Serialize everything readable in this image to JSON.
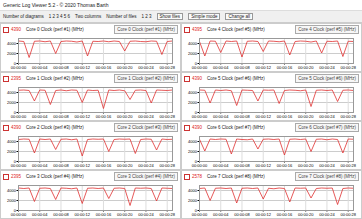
{
  "window": {
    "title": "Generic Log Viewer 5.2 - © 2020 Thomas Barth",
    "toolbar": [
      "Number of diagrams",
      "1 2 3 4 5 6",
      "Two columns",
      "Number of files",
      "1 2 3",
      "Show files",
      "Simple mode",
      "Change all"
    ]
  },
  "chart_data": [
    {
      "type": "line",
      "title": "Core 0 Clock (perf #1) (MHz)",
      "current": "4390",
      "color": "#e03030",
      "grid": true,
      "x": [
        0,
        1,
        2,
        3,
        4,
        5,
        6,
        7,
        8,
        9,
        10,
        11,
        12,
        13,
        14,
        15,
        16,
        17,
        18,
        19,
        20,
        21,
        22,
        23,
        24,
        25,
        26,
        27,
        28,
        29
      ],
      "values": [
        4500,
        4400,
        1200,
        4450,
        4500,
        4350,
        4500,
        2000,
        4400,
        4500,
        4450,
        4300,
        4500,
        1500,
        4450,
        4400,
        4500,
        4350,
        4500,
        4400,
        2500,
        4450,
        4500,
        4400,
        4350,
        4500,
        4450,
        1800,
        4400,
        4500
      ],
      "xlim": [
        0,
        29
      ],
      "ylim": [
        0,
        5000
      ],
      "yticks": [
        0,
        2000,
        4000
      ],
      "xticks": [
        {
          "value": 0,
          "label": "00:00:00"
        },
        {
          "value": 4,
          "label": "00:00:04"
        },
        {
          "value": 8,
          "label": "00:00:08"
        },
        {
          "value": 12,
          "label": "00:00:12"
        },
        {
          "value": 16,
          "label": "00:00:16"
        },
        {
          "value": 20,
          "label": "00:00:20"
        },
        {
          "value": 24,
          "label": "00:00:24"
        },
        {
          "value": 28,
          "label": "00:00:28"
        }
      ]
    },
    {
      "type": "line",
      "title": "Core 4 Clock (perf #5) (MHz)",
      "current": "4395",
      "color": "#e03030",
      "grid": true,
      "x": [
        0,
        1,
        2,
        3,
        4,
        5,
        6,
        7,
        8,
        9,
        10,
        11,
        12,
        13,
        14,
        15,
        16,
        17,
        18,
        19,
        20,
        21,
        22,
        23,
        24,
        25,
        26,
        27,
        28,
        29
      ],
      "values": [
        4400,
        1500,
        4500,
        4450,
        2200,
        4500,
        4400,
        4500,
        1300,
        4450,
        4500,
        4400,
        2400,
        4500,
        4450,
        4350,
        4500,
        1700,
        4400,
        4500,
        4450,
        4300,
        4500,
        2100,
        4450,
        4400,
        4500,
        1400,
        4450,
        4400
      ],
      "xlim": [
        0,
        29
      ],
      "ylim": [
        0,
        5000
      ],
      "yticks": [
        0,
        2000,
        4000
      ],
      "xticks": [
        {
          "value": 0,
          "label": "00:00:00"
        },
        {
          "value": 4,
          "label": "00:00:04"
        },
        {
          "value": 8,
          "label": "00:00:08"
        },
        {
          "value": 12,
          "label": "00:00:12"
        },
        {
          "value": 16,
          "label": "00:00:16"
        },
        {
          "value": 20,
          "label": "00:00:20"
        },
        {
          "value": 24,
          "label": "00:00:24"
        },
        {
          "value": 28,
          "label": "00:00:28"
        }
      ]
    },
    {
      "type": "line",
      "title": "Core 1 Clock (perf #2) (MHz)",
      "current": "2395",
      "color": "#e03030",
      "grid": true,
      "x": [
        0,
        1,
        2,
        3,
        4,
        5,
        6,
        7,
        8,
        9,
        10,
        11,
        12,
        13,
        14,
        15,
        16,
        17,
        18,
        19,
        20,
        21,
        22,
        23,
        24,
        25,
        26,
        27,
        28,
        29
      ],
      "values": [
        4450,
        4500,
        4400,
        2300,
        4500,
        4450,
        1600,
        4400,
        4500,
        4350,
        4500,
        4450,
        2000,
        4500,
        4400,
        4450,
        800,
        4500,
        4400,
        4500,
        4350,
        2600,
        4450,
        4500,
        4400,
        1900,
        4500,
        4450,
        4400,
        4500
      ],
      "xlim": [
        0,
        29
      ],
      "ylim": [
        0,
        5000
      ],
      "yticks": [
        0,
        2000,
        4000
      ],
      "xticks": [
        {
          "value": 0,
          "label": "00:00:00"
        },
        {
          "value": 4,
          "label": "00:00:04"
        },
        {
          "value": 8,
          "label": "00:00:08"
        },
        {
          "value": 12,
          "label": "00:00:12"
        },
        {
          "value": 16,
          "label": "00:00:16"
        },
        {
          "value": 20,
          "label": "00:00:20"
        },
        {
          "value": 24,
          "label": "00:00:24"
        },
        {
          "value": 28,
          "label": "00:00:28"
        }
      ]
    },
    {
      "type": "line",
      "title": "Core 5 Clock (perf #6) (MHz)",
      "current": "4390",
      "color": "#e03030",
      "grid": true,
      "x": [
        0,
        1,
        2,
        3,
        4,
        5,
        6,
        7,
        8,
        9,
        10,
        11,
        12,
        13,
        14,
        15,
        16,
        17,
        18,
        19,
        20,
        21,
        22,
        23,
        24,
        25,
        26,
        27,
        28,
        29
      ],
      "values": [
        4500,
        4450,
        1900,
        4500,
        4400,
        4500,
        4350,
        1400,
        4500,
        4450,
        4400,
        2300,
        4500,
        4450,
        4500,
        1800,
        4400,
        4500,
        4450,
        4350,
        4500,
        1200,
        4450,
        4500,
        4400,
        4500,
        2200,
        4450,
        4500,
        4400
      ],
      "xlim": [
        0,
        29
      ],
      "ylim": [
        0,
        5000
      ],
      "yticks": [
        0,
        2000,
        4000
      ],
      "xticks": [
        {
          "value": 0,
          "label": "00:00:00"
        },
        {
          "value": 4,
          "label": "00:00:04"
        },
        {
          "value": 8,
          "label": "00:00:08"
        },
        {
          "value": 12,
          "label": "00:00:12"
        },
        {
          "value": 16,
          "label": "00:00:16"
        },
        {
          "value": 20,
          "label": "00:00:20"
        },
        {
          "value": 24,
          "label": "00:00:24"
        },
        {
          "value": 28,
          "label": "00:00:28"
        }
      ]
    },
    {
      "type": "line",
      "title": "Core 2 Clock (perf #3) (MHz)",
      "current": "4390",
      "color": "#e03030",
      "grid": true,
      "x": [
        0,
        1,
        2,
        3,
        4,
        5,
        6,
        7,
        8,
        9,
        10,
        11,
        12,
        13,
        14,
        15,
        16,
        17,
        18,
        19,
        20,
        21,
        22,
        23,
        24,
        25,
        26,
        27,
        28,
        29
      ],
      "values": [
        4400,
        4500,
        4450,
        1700,
        4500,
        4400,
        4500,
        2400,
        4450,
        4500,
        4350,
        4500,
        1100,
        4400,
        4500,
        4450,
        4500,
        2000,
        4400,
        4500,
        4450,
        4500,
        1600,
        4400,
        4500,
        4450,
        2300,
        4500,
        4400,
        4450
      ],
      "xlim": [
        0,
        29
      ],
      "ylim": [
        0,
        5000
      ],
      "yticks": [
        0,
        2000,
        4000
      ],
      "xticks": [
        {
          "value": 0,
          "label": "00:00:00"
        },
        {
          "value": 4,
          "label": "00:00:04"
        },
        {
          "value": 8,
          "label": "00:00:08"
        },
        {
          "value": 12,
          "label": "00:00:12"
        },
        {
          "value": 16,
          "label": "00:00:16"
        },
        {
          "value": 20,
          "label": "00:00:20"
        },
        {
          "value": 24,
          "label": "00:00:24"
        },
        {
          "value": 28,
          "label": "00:00:28"
        }
      ]
    },
    {
      "type": "line",
      "title": "Core 6 Clock (perf #7) (MHz)",
      "current": "4390",
      "color": "#e03030",
      "grid": true,
      "x": [
        0,
        1,
        2,
        3,
        4,
        5,
        6,
        7,
        8,
        9,
        10,
        11,
        12,
        13,
        14,
        15,
        16,
        17,
        18,
        19,
        20,
        21,
        22,
        23,
        24,
        25,
        26,
        27,
        28,
        29
      ],
      "values": [
        4450,
        2100,
        4500,
        4400,
        4500,
        4450,
        1500,
        4500,
        4400,
        4350,
        4500,
        2500,
        4450,
        4500,
        4400,
        4500,
        1300,
        4450,
        4500,
        4400,
        4500,
        2000,
        4450,
        4500,
        4350,
        4500,
        4400,
        1700,
        4500,
        4450
      ],
      "xlim": [
        0,
        29
      ],
      "ylim": [
        0,
        5000
      ],
      "yticks": [
        0,
        2000,
        4000
      ],
      "xticks": [
        {
          "value": 0,
          "label": "00:00:00"
        },
        {
          "value": 4,
          "label": "00:00:04"
        },
        {
          "value": 8,
          "label": "00:00:08"
        },
        {
          "value": 12,
          "label": "00:00:12"
        },
        {
          "value": 16,
          "label": "00:00:16"
        },
        {
          "value": 20,
          "label": "00:00:20"
        },
        {
          "value": 24,
          "label": "00:00:24"
        },
        {
          "value": 28,
          "label": "00:00:28"
        }
      ]
    },
    {
      "type": "line",
      "title": "Core 3 Clock (perf #4) (MHz)",
      "current": "2395",
      "color": "#e03030",
      "grid": true,
      "x": [
        0,
        1,
        2,
        3,
        4,
        5,
        6,
        7,
        8,
        9,
        10,
        11,
        12,
        13,
        14,
        15,
        16,
        17,
        18,
        19,
        20,
        21,
        22,
        23,
        24,
        25,
        26,
        27,
        28,
        29
      ],
      "values": [
        4500,
        4400,
        4500,
        1800,
        4450,
        4500,
        4400,
        2200,
        4500,
        4450,
        4350,
        4500,
        1400,
        4450,
        4500,
        4400,
        4500,
        2400,
        4450,
        4500,
        4400,
        1000,
        4500,
        4450,
        4500,
        4400,
        1900,
        4500,
        4450,
        4400
      ],
      "xlim": [
        0,
        29
      ],
      "ylim": [
        0,
        5000
      ],
      "yticks": [
        0,
        2000,
        4000
      ],
      "xticks": [
        {
          "value": 0,
          "label": "00:00:00"
        },
        {
          "value": 4,
          "label": "00:00:04"
        },
        {
          "value": 8,
          "label": "00:00:08"
        },
        {
          "value": 12,
          "label": "00:00:12"
        },
        {
          "value": 16,
          "label": "00:00:16"
        },
        {
          "value": 20,
          "label": "00:00:20"
        },
        {
          "value": 24,
          "label": "00:00:24"
        },
        {
          "value": 28,
          "label": "00:00:28"
        }
      ]
    },
    {
      "type": "line",
      "title": "Core 7 Clock (perf #8) (MHz)",
      "current": "2578",
      "color": "#e03030",
      "grid": true,
      "x": [
        0,
        1,
        2,
        3,
        4,
        5,
        6,
        7,
        8,
        9,
        10,
        11,
        12,
        13,
        14,
        15,
        16,
        17,
        18,
        19,
        20,
        21,
        22,
        23,
        24,
        25,
        26,
        27,
        28,
        29
      ],
      "values": [
        4400,
        4500,
        2000,
        4450,
        4500,
        4400,
        4500,
        1500,
        4450,
        4500,
        4400,
        4500,
        2300,
        4450,
        4350,
        4500,
        4400,
        1700,
        4500,
        4450,
        4500,
        2500,
        4400,
        4500,
        4450,
        4500,
        1200,
        4400,
        4500,
        4450
      ],
      "xlim": [
        0,
        29
      ],
      "ylim": [
        0,
        5000
      ],
      "yticks": [
        0,
        2000,
        4000
      ],
      "xticks": [
        {
          "value": 0,
          "label": "00:00:00"
        },
        {
          "value": 4,
          "label": "00:00:04"
        },
        {
          "value": 8,
          "label": "00:00:08"
        },
        {
          "value": 12,
          "label": "00:00:12"
        },
        {
          "value": 16,
          "label": "00:00:16"
        },
        {
          "value": 20,
          "label": "00:00:20"
        },
        {
          "value": 24,
          "label": "00:00:24"
        },
        {
          "value": 28,
          "label": "00:00:28"
        }
      ]
    }
  ]
}
